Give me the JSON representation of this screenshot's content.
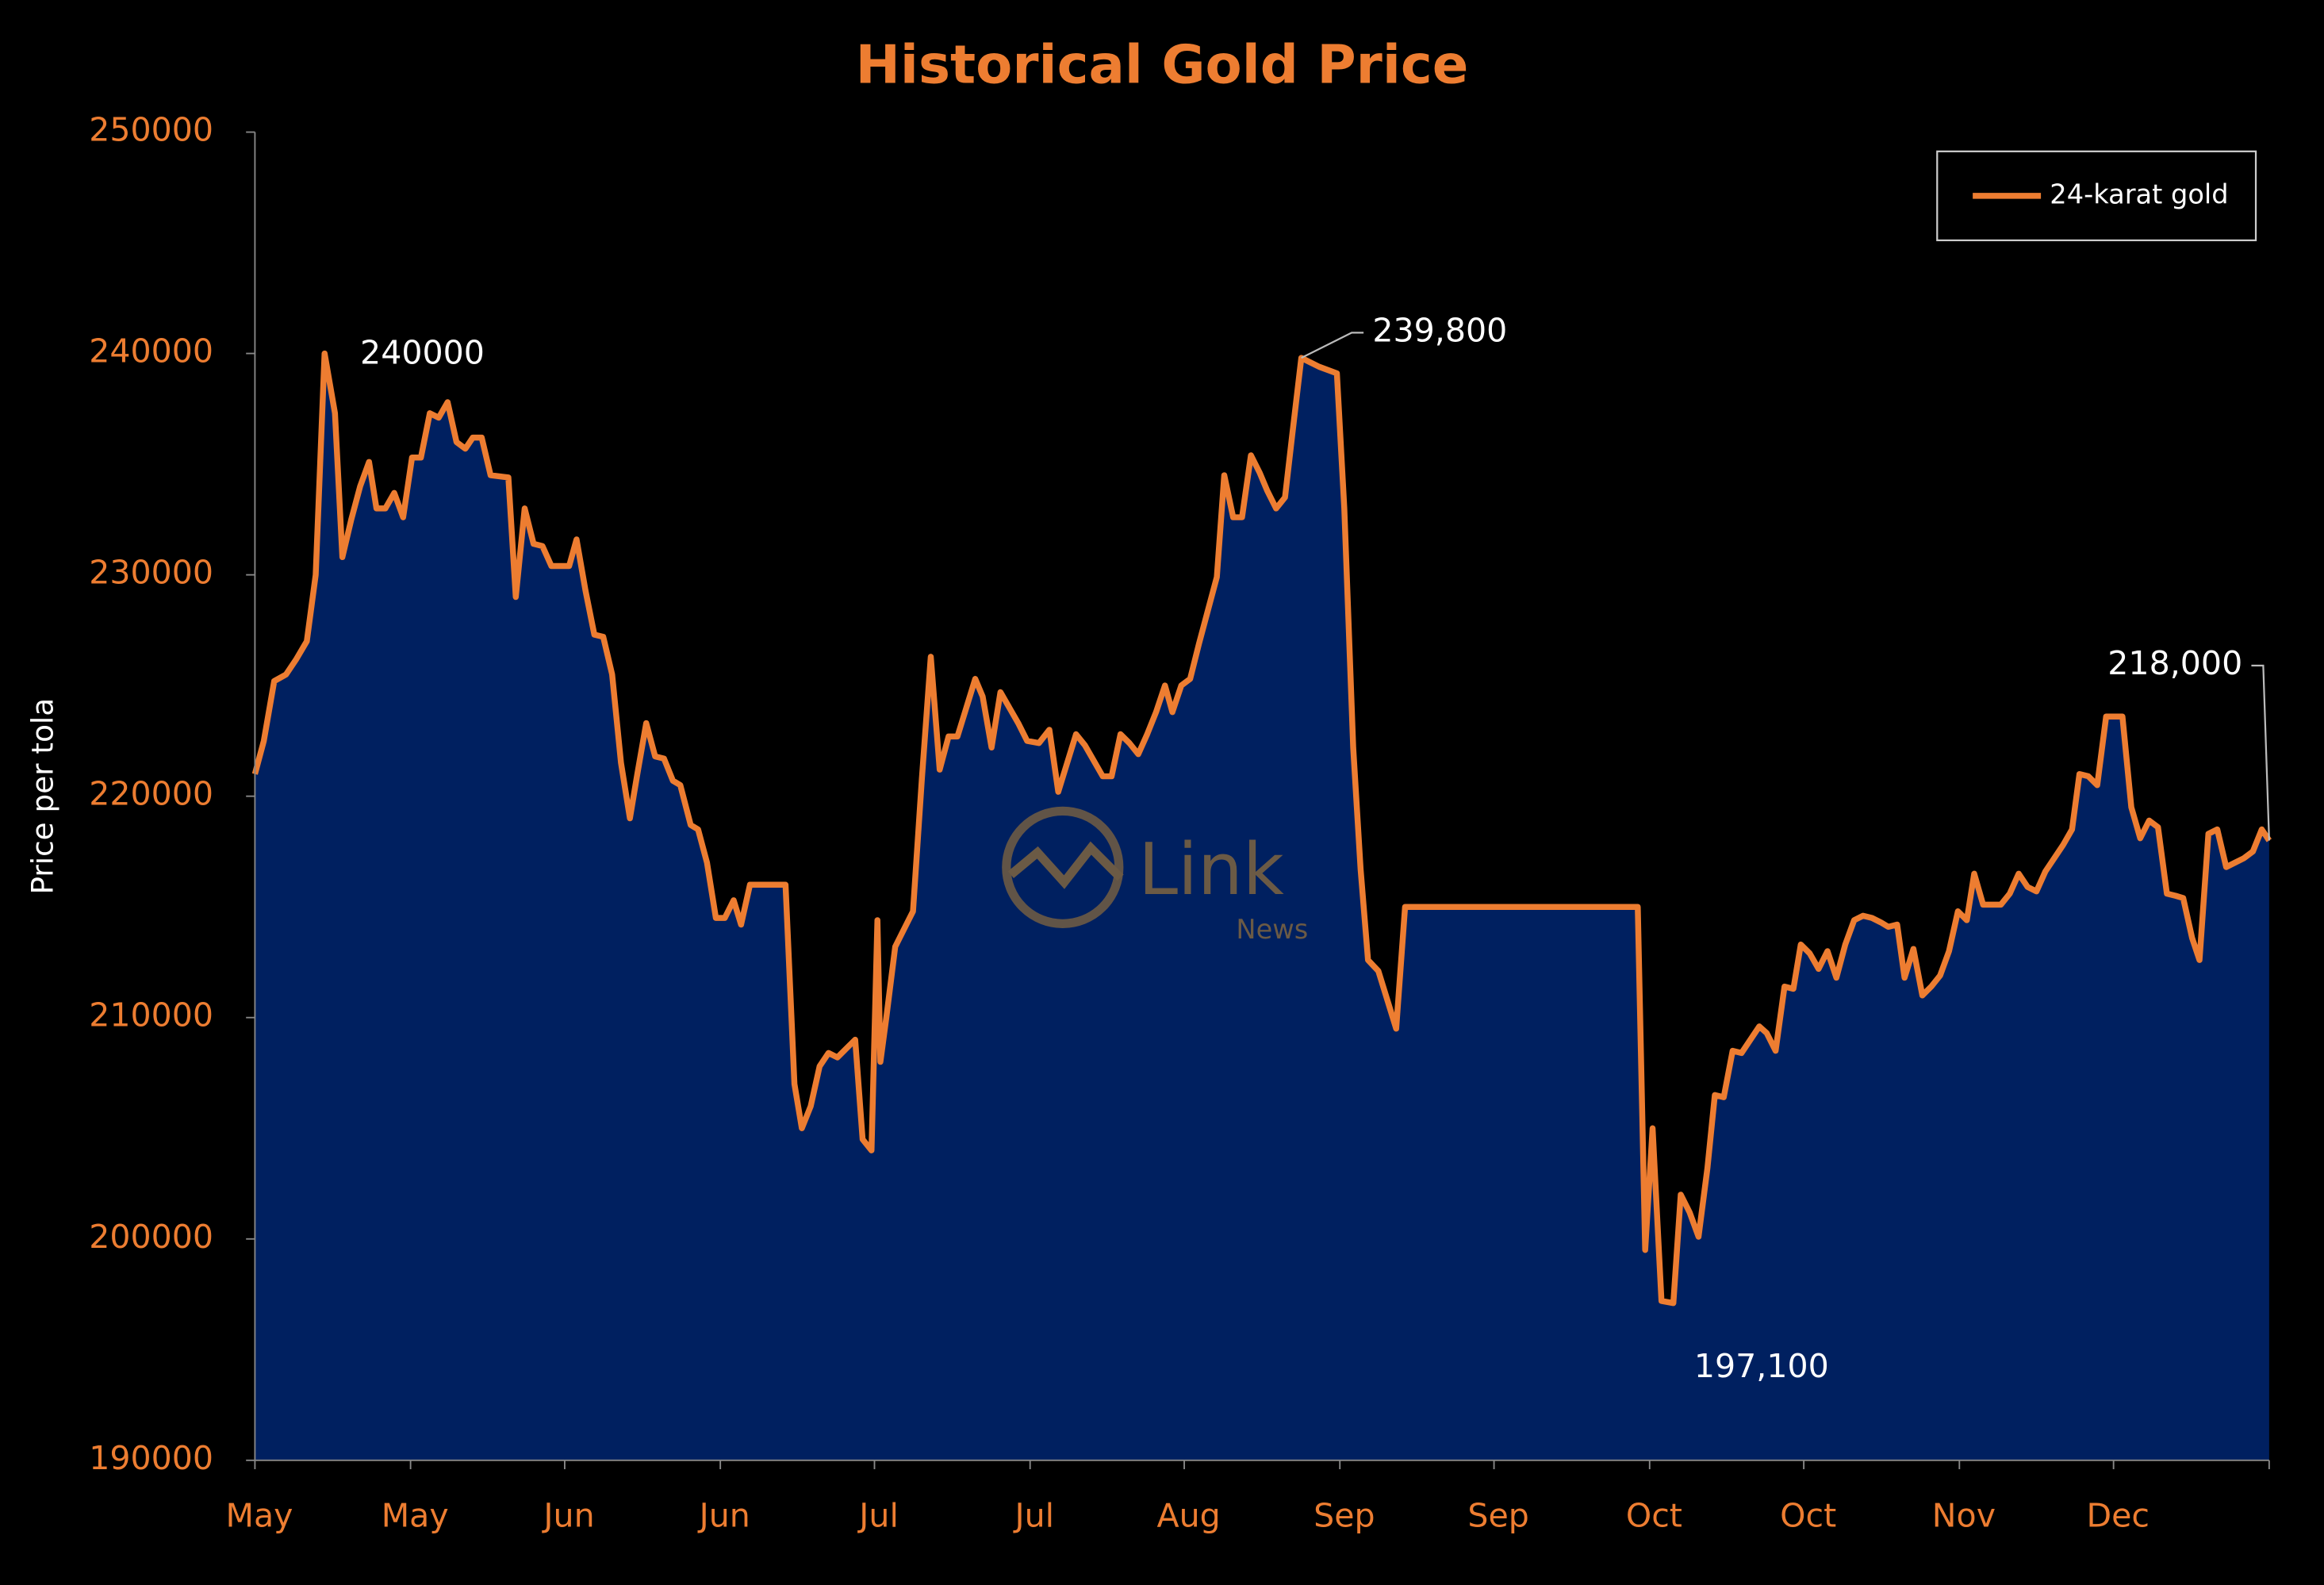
{
  "chart_data": {
    "type": "line",
    "title": "Historical Gold Price",
    "ylabel": "Price per tola",
    "xlim": [
      0,
      1359
    ],
    "xticks": [
      {
        "value": 0,
        "label": "May"
      },
      {
        "value": 105,
        "label": "May"
      },
      {
        "value": 209,
        "label": "Jun"
      },
      {
        "value": 314,
        "label": "Jun"
      },
      {
        "value": 418,
        "label": "Jul"
      },
      {
        "value": 523,
        "label": "Jul"
      },
      {
        "value": 627,
        "label": "Aug"
      },
      {
        "value": 732,
        "label": "Sep"
      },
      {
        "value": 836,
        "label": "Sep"
      },
      {
        "value": 941,
        "label": "Oct"
      },
      {
        "value": 1045,
        "label": "Oct"
      },
      {
        "value": 1150,
        "label": "Nov"
      },
      {
        "value": 1254,
        "label": "Dec"
      }
    ],
    "ylim": [
      190000,
      250000
    ],
    "yticks": [
      190000,
      200000,
      210000,
      220000,
      230000,
      240000,
      250000
    ],
    "legend": "upper right",
    "fill": "#002060",
    "series": [
      {
        "name": "24-karat gold",
        "color": "#ed7d31",
        "x": [
          0,
          6,
          13,
          21,
          28,
          35,
          41,
          47,
          54,
          59,
          65,
          71,
          77,
          82,
          88,
          94,
          100,
          106,
          112,
          118,
          124,
          130,
          136,
          142,
          147,
          153,
          159,
          171,
          176,
          182,
          188,
          194,
          200,
          212,
          217,
          223,
          229,
          235,
          241,
          247,
          253,
          258,
          264,
          270,
          276,
          282,
          287,
          294,
          299,
          305,
          311,
          317,
          323,
          328,
          334,
          358,
          364,
          369,
          375,
          381,
          387,
          393,
          399,
          405,
          410,
          416,
          420,
          422,
          426,
          432,
          438,
          444,
          450,
          456,
          462,
          468,
          474,
          480,
          486,
          491,
          497,
          503,
          509,
          515,
          521,
          529,
          536,
          542,
          548,
          554,
          560,
          566,
          572,
          578,
          584,
          590,
          596,
          602,
          608,
          614,
          619,
          625,
          631,
          637,
          643,
          649,
          654,
          660,
          666,
          672,
          678,
          683,
          689,
          695,
          700,
          706,
          712,
          718,
          730,
          735,
          741,
          746,
          751,
          758,
          770,
          776,
          933,
          938,
          943,
          949,
          957,
          962,
          968,
          974,
          980,
          985,
          991,
          997,
          1003,
          1009,
          1015,
          1020,
          1026,
          1032,
          1038,
          1043,
          1049,
          1055,
          1061,
          1067,
          1073,
          1079,
          1085,
          1091,
          1097,
          1102,
          1108,
          1113,
          1119,
          1125,
          1131,
          1137,
          1143,
          1149,
          1155,
          1160,
          1166,
          1178,
          1184,
          1190,
          1196,
          1202,
          1208,
          1214,
          1220,
          1226,
          1231,
          1237,
          1243,
          1249,
          1260,
          1266,
          1272,
          1278,
          1284,
          1290,
          1296,
          1301,
          1307,
          1312,
          1318,
          1324,
          1330,
          1336,
          1342,
          1348,
          1354,
          1359
        ],
        "values": [
          221000,
          222500,
          225200,
          225500,
          226200,
          227000,
          230000,
          240000,
          237300,
          230800,
          232500,
          234000,
          235100,
          233000,
          233000,
          233700,
          232600,
          235300,
          235300,
          237300,
          237100,
          237800,
          236000,
          235700,
          236200,
          236200,
          234500,
          234400,
          229000,
          233000,
          231400,
          231300,
          230400,
          230400,
          231600,
          229300,
          227300,
          227200,
          225500,
          221500,
          219000,
          221000,
          223300,
          221800,
          221700,
          220700,
          220500,
          218700,
          218500,
          217000,
          214500,
          214500,
          215300,
          214200,
          216000,
          216000,
          207000,
          205000,
          206000,
          207800,
          208400,
          208200,
          208600,
          209000,
          204500,
          204000,
          214400,
          208000,
          210000,
          213200,
          214000,
          214800,
          220800,
          226300,
          221200,
          222700,
          222700,
          224000,
          225300,
          224500,
          222200,
          224700,
          224000,
          223300,
          222500,
          222400,
          223000,
          220200,
          221500,
          222800,
          222300,
          221600,
          220900,
          220900,
          222800,
          222400,
          221900,
          222800,
          223800,
          225000,
          223800,
          225000,
          225300,
          226900,
          228400,
          229900,
          234500,
          232600,
          232600,
          235400,
          234600,
          233800,
          233000,
          233500,
          236400,
          239800,
          239600,
          239400,
          239100,
          233000,
          222200,
          216700,
          212600,
          212100,
          209500,
          215000,
          215000,
          199500,
          205000,
          197200,
          197100,
          202000,
          201200,
          200100,
          203200,
          206500,
          206400,
          208500,
          208400,
          209000,
          209600,
          209300,
          208500,
          211400,
          211300,
          213300,
          212900,
          212200,
          213000,
          211800,
          213300,
          214400,
          214600,
          214500,
          214300,
          214100,
          214200,
          211800,
          213100,
          211000,
          211400,
          211900,
          213000,
          214800,
          214400,
          216500,
          215100,
          215100,
          215600,
          216500,
          215900,
          215700,
          216600,
          217200,
          217800,
          218500,
          221000,
          220900,
          220500,
          223600,
          223600,
          219500,
          218100,
          218900,
          218600,
          215600,
          215500,
          215400,
          213600,
          212600,
          218300,
          218500,
          216800,
          217000,
          217200,
          217500,
          218500,
          218000
        ]
      }
    ],
    "annotations": [
      {
        "label": "240000",
        "x": 47,
        "y": 240000
      },
      {
        "label": "239,800",
        "x": 706,
        "y": 239800
      },
      {
        "label": "197,100",
        "x": 957,
        "y": 197100
      },
      {
        "label": "218,000",
        "x": 1359,
        "y": 218000
      }
    ],
    "watermark": {
      "title": "Link",
      "subtitle": "News"
    }
  }
}
